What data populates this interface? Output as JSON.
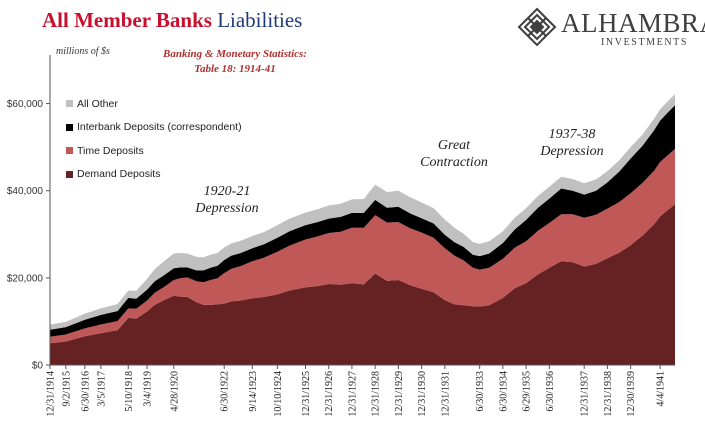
{
  "header": {
    "title_red": "All Member Banks",
    "title_blue": "Liabilities",
    "units": "millions of $s",
    "source_line1": "Banking & Monetary Statistics:",
    "source_line2": "Table 18: 1914-41"
  },
  "logo": {
    "name": "ALHAMBRA",
    "subtitle": "INVESTMENTS",
    "icon": "diamond-lattice-icon"
  },
  "annotations": [
    {
      "line1": "1920-21",
      "line2": "Depression"
    },
    {
      "line1": "Great",
      "line2": "Contraction"
    },
    {
      "line1": "1937-38",
      "line2": "Depression"
    }
  ],
  "colors": {
    "demand": "#662222",
    "time": "#c05858",
    "interbank": "#000000",
    "other": "#c0c0c0",
    "axis": "#555555"
  },
  "chart_data": {
    "type": "area",
    "stacked": true,
    "ylim": [
      0,
      70000
    ],
    "yticks": [
      0,
      20000,
      40000,
      60000
    ],
    "ytick_labels": [
      "$0",
      "$20,000",
      "$40,000",
      "$60,000"
    ],
    "xlim": [
      1914.99,
      1941.9
    ],
    "xticks": [
      {
        "label": "12/31/1914",
        "x": 1914.99
      },
      {
        "label": "9/2/1915",
        "x": 1915.67
      },
      {
        "label": "6/30/1916",
        "x": 1916.49
      },
      {
        "label": "3/5/1917",
        "x": 1917.18
      },
      {
        "label": "5/10/1918",
        "x": 1918.36
      },
      {
        "label": "3/4/1919",
        "x": 1919.17
      },
      {
        "label": "4/28/1920",
        "x": 1920.32
      },
      {
        "label": "6/30/1922",
        "x": 1922.49
      },
      {
        "label": "9/14/1923",
        "x": 1923.7
      },
      {
        "label": "10/10/1924",
        "x": 1924.78
      },
      {
        "label": "12/31/1925",
        "x": 1925.99
      },
      {
        "label": "12/31/1926",
        "x": 1926.99
      },
      {
        "label": "12/31/1927",
        "x": 1927.99
      },
      {
        "label": "12/31/1928",
        "x": 1928.99
      },
      {
        "label": "12/31/1929",
        "x": 1929.99
      },
      {
        "label": "12/31/1930",
        "x": 1930.99
      },
      {
        "label": "12/31/1931",
        "x": 1931.99
      },
      {
        "label": "6/30/1933",
        "x": 1933.49
      },
      {
        "label": "6/30/1934",
        "x": 1934.49
      },
      {
        "label": "6/29/1935",
        "x": 1935.49
      },
      {
        "label": "6/30/1936",
        "x": 1936.49
      },
      {
        "label": "12/31/1937",
        "x": 1937.99
      },
      {
        "label": "12/31/1938",
        "x": 1938.99
      },
      {
        "label": "12/30/1939",
        "x": 1939.99
      },
      {
        "label": "4/4/1941",
        "x": 1941.26
      }
    ],
    "x": [
      1914.99,
      1915.67,
      1916.49,
      1917.18,
      1917.9,
      1918.36,
      1918.7,
      1919.17,
      1919.5,
      1919.9,
      1920.32,
      1920.6,
      1920.9,
      1921.3,
      1921.6,
      1921.9,
      1922.2,
      1922.49,
      1922.8,
      1923.2,
      1923.7,
      1924.2,
      1924.78,
      1925.3,
      1925.99,
      1926.5,
      1926.99,
      1927.5,
      1927.99,
      1928.5,
      1928.99,
      1929.5,
      1929.99,
      1930.5,
      1930.99,
      1931.5,
      1931.99,
      1932.4,
      1932.8,
      1933.2,
      1933.49,
      1933.9,
      1934.49,
      1935.0,
      1935.49,
      1936.0,
      1936.49,
      1937.0,
      1937.5,
      1937.99,
      1938.5,
      1938.99,
      1939.5,
      1939.99,
      1940.5,
      1941.0,
      1941.26,
      1941.6,
      1941.9
    ],
    "series": [
      {
        "name": "Demand Deposits",
        "values": [
          5000,
          5400,
          6600,
          7300,
          8000,
          10800,
          10600,
          12300,
          13800,
          14900,
          15900,
          15700,
          15600,
          14400,
          13800,
          13800,
          13900,
          14100,
          14600,
          14800,
          15300,
          15600,
          16200,
          17100,
          17800,
          18100,
          18600,
          18400,
          18800,
          18500,
          21000,
          19300,
          19500,
          18300,
          17500,
          16700,
          14900,
          13900,
          13700,
          13500,
          13400,
          13700,
          15400,
          17600,
          18800,
          20800,
          22300,
          23800,
          23600,
          22600,
          23200,
          24500,
          25800,
          27500,
          29700,
          32300,
          34100,
          35600,
          36900
        ]
      },
      {
        "name": "Time Deposits",
        "values": [
          1500,
          1600,
          1800,
          2000,
          2100,
          2200,
          2300,
          2500,
          2800,
          3000,
          3600,
          4200,
          4500,
          4800,
          5200,
          5700,
          6000,
          7000,
          7500,
          7900,
          8500,
          9000,
          9800,
          10300,
          11000,
          11400,
          11700,
          12200,
          12700,
          13000,
          13400,
          13400,
          13300,
          13100,
          12900,
          12500,
          11900,
          11200,
          10300,
          8800,
          8500,
          8600,
          9000,
          9300,
          9600,
          10000,
          10300,
          10800,
          11000,
          11200,
          11300,
          11400,
          11600,
          11900,
          12100,
          12300,
          12500,
          12600,
          12700
        ]
      },
      {
        "name": "Interbank Deposits (correspondent)",
        "values": [
          1600,
          1700,
          2000,
          2200,
          2300,
          2400,
          2300,
          2500,
          2600,
          2700,
          2700,
          2500,
          2300,
          2500,
          2700,
          2800,
          2900,
          3000,
          3000,
          3000,
          3000,
          3100,
          3200,
          3300,
          3300,
          3300,
          3300,
          3400,
          3400,
          3400,
          3500,
          3400,
          3500,
          3400,
          3300,
          3300,
          3100,
          3100,
          3100,
          3000,
          3100,
          3300,
          3600,
          4200,
          4900,
          5300,
          5600,
          5900,
          5400,
          5300,
          5500,
          6000,
          7000,
          8000,
          8500,
          9300,
          9500,
          9800,
          10000
        ]
      },
      {
        "name": "All Other",
        "values": [
          1200,
          1200,
          1400,
          1500,
          1600,
          1700,
          1800,
          2500,
          2800,
          3200,
          3400,
          3300,
          3200,
          3100,
          3000,
          3000,
          2900,
          2900,
          2800,
          2800,
          2800,
          2800,
          2900,
          2900,
          2900,
          2900,
          3000,
          3000,
          3100,
          3200,
          3500,
          3600,
          3700,
          3700,
          3600,
          3500,
          3500,
          3300,
          3000,
          2900,
          2800,
          2800,
          2700,
          2700,
          2700,
          2700,
          2700,
          2700,
          2700,
          2600,
          2600,
          2600,
          2600,
          2600,
          2600,
          2600,
          2600,
          2600,
          2600
        ]
      }
    ],
    "legend_order": [
      "All Other",
      "Interbank Deposits (correspondent)",
      "Time Deposits",
      "Demand Deposits"
    ],
    "legend_position": "top-left"
  }
}
